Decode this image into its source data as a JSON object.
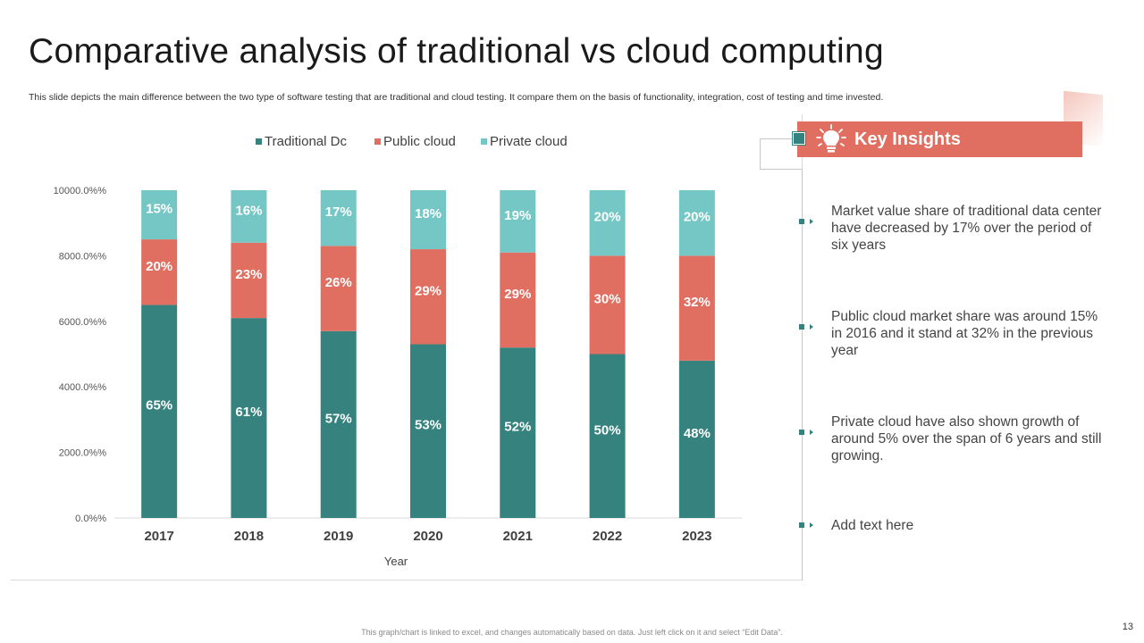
{
  "slide": {
    "title": "Comparative analysis of traditional vs cloud computing",
    "subtitle": "This slide depicts the main difference between the two type of software testing that are traditional and cloud testing. It compare them on the basis of functionality, integration, cost of testing and time invested.",
    "footer_note": "This graph/chart is linked to excel, and changes automatically based on data. Just left click on it and select “Edit Data”.",
    "page_number": "13"
  },
  "colors": {
    "traditional": "#35827f",
    "public": "#e06f62",
    "private": "#74c7c5",
    "accent": "#e06f62",
    "teal": "#34827f"
  },
  "chart_data": {
    "type": "bar",
    "stacked": true,
    "title": "",
    "xlabel": "Year",
    "ylabel": "",
    "ylim": [
      0,
      10000
    ],
    "yticks": [
      0,
      2000,
      4000,
      6000,
      8000,
      10000
    ],
    "ytick_labels": [
      "0.0%%",
      "2000.0%%",
      "4000.0%%",
      "6000.0%%",
      "8000.0%%",
      "10000.0%%"
    ],
    "categories": [
      "2017",
      "2018",
      "2019",
      "2020",
      "2021",
      "2022",
      "2023"
    ],
    "legend_position": "top",
    "series": [
      {
        "name": "Traditional Dc",
        "color": "#35827f",
        "values": [
          65,
          61,
          57,
          53,
          52,
          50,
          48
        ],
        "labels": [
          "65%",
          "61%",
          "57%",
          "53%",
          "52%",
          "50%",
          "48%"
        ]
      },
      {
        "name": "Public cloud",
        "color": "#e06f62",
        "values": [
          20,
          23,
          26,
          29,
          29,
          30,
          32
        ],
        "labels": [
          "20%",
          "23%",
          "26%",
          "29%",
          "29%",
          "30%",
          "32%"
        ]
      },
      {
        "name": "Private cloud",
        "color": "#74c7c5",
        "values": [
          15,
          16,
          17,
          18,
          19,
          20,
          20
        ],
        "labels": [
          "15%",
          "16%",
          "17%",
          "18%",
          "19%",
          "20%",
          "20%"
        ]
      }
    ]
  },
  "insights": {
    "title": "Key Insights",
    "icon": "lightbulb-icon",
    "items": [
      {
        "text": "Market value share of traditional data center have decreased by 17% over the period of six years"
      },
      {
        "text": "Public cloud market share was around 15% in 2016 and it stand at 32% in the previous year"
      },
      {
        "text": "Private cloud have also shown growth of around 5% over the span of 6 years and still growing."
      },
      {
        "text": "Add text here"
      }
    ]
  }
}
